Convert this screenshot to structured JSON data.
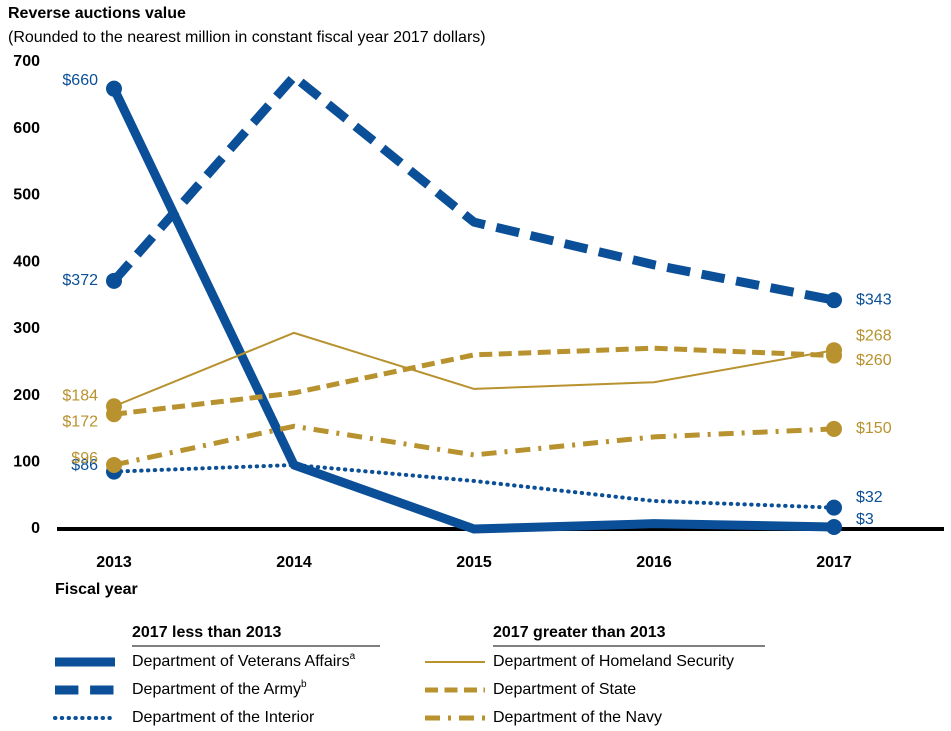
{
  "chart_data": {
    "type": "line",
    "title": "Reverse auctions value",
    "subtitle": "(Rounded to the nearest million in constant fiscal year 2017 dollars)",
    "xlabel": "Fiscal year",
    "categories": [
      "2013",
      "2014",
      "2015",
      "2016",
      "2017"
    ],
    "ylim": [
      0,
      700
    ],
    "yticks": [
      0,
      100,
      200,
      300,
      400,
      500,
      600,
      700
    ],
    "grid": false,
    "series": [
      {
        "name": "Department of Veterans Affairs",
        "name_note": "a",
        "color": "#0a4f97",
        "line_style": "solid",
        "line_width": 9,
        "values": [
          660,
          96,
          0,
          8,
          3
        ],
        "value_labels": [
          "$660",
          null,
          null,
          null,
          "$3"
        ]
      },
      {
        "name": "Department of the Army",
        "name_note": "b",
        "color": "#0a4f97",
        "line_style": "dashed",
        "line_width": 9,
        "values": [
          372,
          678,
          460,
          396,
          343
        ],
        "value_labels": [
          "$372",
          null,
          null,
          null,
          "$343"
        ]
      },
      {
        "name": "Department of the Interior",
        "color": "#0a4f97",
        "line_style": "dotted",
        "line_width": 4,
        "values": [
          86,
          96,
          72,
          42,
          32
        ],
        "value_labels": [
          "$86",
          null,
          null,
          null,
          "$32"
        ]
      },
      {
        "name": "Department of Homeland Security",
        "color": "#b8922f",
        "line_style": "solid",
        "line_width": 2,
        "values": [
          184,
          294,
          210,
          220,
          268
        ],
        "value_labels": [
          "$184",
          null,
          null,
          null,
          "$268"
        ]
      },
      {
        "name": "Department of State",
        "color": "#b8922f",
        "line_style": "dashed",
        "line_width": 5,
        "values": [
          172,
          204,
          261,
          271,
          260
        ],
        "value_labels": [
          "$172",
          null,
          null,
          null,
          "$260"
        ]
      },
      {
        "name": "Department of the Navy",
        "color": "#b8922f",
        "line_style": "dashdot",
        "line_width": 5,
        "values": [
          96,
          154,
          111,
          138,
          150
        ],
        "value_labels": [
          "$96",
          null,
          null,
          null,
          "$150"
        ]
      }
    ],
    "legend_groups": [
      {
        "title": "2017 less than 2013",
        "series": [
          0,
          1,
          2
        ]
      },
      {
        "title": "2017 greater than 2013",
        "series": [
          3,
          4,
          5
        ]
      }
    ]
  }
}
